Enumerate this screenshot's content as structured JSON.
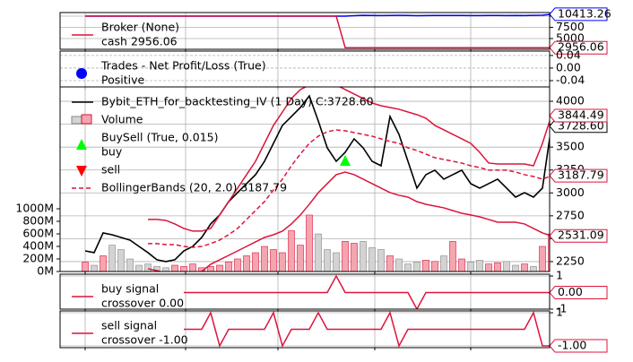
{
  "chart_data": [
    {
      "type": "line",
      "ylim": [
        2600,
        10800
      ],
      "yticks": [
        10000,
        7500,
        5000
      ],
      "grid": true,
      "legend": [
        {
          "lines": [
            "Broker (None)",
            "cash 2956.06"
          ],
          "marker": "line",
          "color": "#dc143c"
        }
      ],
      "series": [
        {
          "color": "#0000ff",
          "last_label": "10413.26",
          "values": [
            10000,
            10000,
            10000,
            10000,
            10000,
            10000,
            10000,
            10000,
            10000,
            10000,
            10000,
            10000,
            10000,
            10000,
            10000,
            10000,
            10000,
            10000,
            10000,
            10000,
            10000,
            10000,
            10000,
            10000,
            10000,
            10000,
            10000,
            10000,
            10000,
            9990,
            10100,
            10180,
            10150,
            10120,
            10160,
            10170,
            10140,
            10100,
            10130,
            10150,
            10160,
            10150,
            10140,
            10120,
            10130,
            10150,
            10140,
            10120,
            10160,
            10130,
            10180,
            10200,
            10413.26
          ]
        },
        {
          "color": "#dc143c",
          "last_label": "2956.06",
          "values": [
            10000,
            10000,
            10000,
            10000,
            10000,
            10000,
            10000,
            10000,
            10000,
            10000,
            10000,
            10000,
            10000,
            10000,
            10000,
            10000,
            10000,
            10000,
            10000,
            10000,
            10000,
            10000,
            10000,
            10000,
            10000,
            10000,
            10000,
            10000,
            10000,
            2956.06,
            2956.06,
            2956.06,
            2956.06,
            2956.06,
            2956.06,
            2956.06,
            2956.06,
            2956.06,
            2956.06,
            2956.06,
            2956.06,
            2956.06,
            2956.06,
            2956.06,
            2956.06,
            2956.06,
            2956.06,
            2956.06,
            2956.06,
            2956.06,
            2956.06,
            2956.06,
            2956.06
          ]
        }
      ]
    },
    {
      "type": "line",
      "ylim": [
        -0.06,
        0.054
      ],
      "yticks": [
        0.04,
        {
          "value": 0,
          "label": "0.00"
        },
        -0.04
      ],
      "grid": true,
      "legend": [
        {
          "lines": [
            "Trades - Net Profit/Loss (True)",
            "Positive"
          ],
          "marker": "dot",
          "color": "#0000ff"
        }
      ],
      "series": []
    },
    {
      "type": "line",
      "ylim": [
        2142,
        4157
      ],
      "yticks": [
        4000,
        3750,
        3500,
        3250,
        3000,
        2750,
        2500,
        2250
      ],
      "grid": true,
      "y2lim": [
        0,
        2943
      ],
      "y2ticks": [
        {
          "value": 0,
          "label": "0M"
        },
        {
          "value": 200,
          "label": "200M"
        },
        {
          "value": 400,
          "label": "400M"
        },
        {
          "value": 600,
          "label": "600M"
        },
        {
          "value": 800,
          "label": "800M"
        },
        {
          "value": 1000,
          "label": "1000M"
        }
      ],
      "legend": [
        {
          "lines": [
            "Bybit_ETH_for_backtesting_IV (1 Day) C:3728.60"
          ],
          "marker": "line",
          "color": "#000000"
        },
        {
          "lines": [
            "Volume"
          ],
          "marker": "bar",
          "color": "#f4a6b0"
        },
        {
          "lines": [
            "BuySell (True, 0.015)",
            "buy"
          ],
          "marker": "triangle-up",
          "color": "#00ff00"
        },
        {
          "lines": [
            "sell"
          ],
          "marker": "triangle-down",
          "color": "#ff0000"
        },
        {
          "lines": [
            "BollingerBands (20, 2.0) 3187.79"
          ],
          "marker": "dashed",
          "color": "#dc143c"
        }
      ],
      "series": [
        {
          "kind": "bar",
          "axis": "y2",
          "color": "#f4a6b0",
          "down_color": "#d3d3d3",
          "values": [
            150,
            100,
            250,
            420,
            350,
            200,
            100,
            120,
            80,
            60,
            100,
            80,
            120,
            60,
            80,
            100,
            150,
            200,
            250,
            300,
            400,
            350,
            300,
            650,
            420,
            900,
            600,
            350,
            300,
            480,
            450,
            480,
            380,
            350,
            250,
            200,
            120,
            150,
            180,
            160,
            250,
            480,
            200,
            150,
            180,
            120,
            140,
            160,
            100,
            120,
            80,
            400,
            600
          ]
        },
        {
          "kind": "line",
          "color": "#000000",
          "last_label": "3728.60",
          "values": [
            2367,
            2348,
            2563,
            2543,
            2514,
            2485,
            2416,
            2348,
            2270,
            2250,
            2270,
            2367,
            2416,
            2514,
            2661,
            2759,
            2905,
            3003,
            3101,
            3199,
            3345,
            3541,
            3737,
            3834,
            3932,
            4059,
            3785,
            3492,
            3345,
            3443,
            3590,
            3492,
            3345,
            3296,
            3834,
            3639,
            3345,
            3052,
            3199,
            3248,
            3150,
            3199,
            3248,
            3101,
            3052,
            3101,
            3150,
            3052,
            2954,
            3003,
            2954,
            3052,
            3728.6
          ]
        },
        {
          "kind": "line",
          "color": "#dc143c",
          "last_label": "3844.49",
          "values": [
            null,
            null,
            null,
            null,
            null,
            null,
            null,
            2710,
            2710,
            2700,
            2661,
            2612,
            2583,
            2583,
            2612,
            2759,
            2905,
            3052,
            3199,
            3345,
            3541,
            3737,
            3883,
            4030,
            4128,
            4177,
            4226,
            4206,
            4177,
            4128,
            4079,
            4030,
            3981,
            3952,
            3932,
            3913,
            3883,
            3854,
            3815,
            3737,
            3688,
            3639,
            3590,
            3541,
            3443,
            3326,
            3316,
            3316,
            3316,
            3316,
            3296,
            3541,
            3844.49
          ]
        },
        {
          "kind": "line",
          "style": "dashed",
          "color": "#dc143c",
          "last_label": "3187.79",
          "values": [
            null,
            null,
            null,
            null,
            null,
            null,
            null,
            2446,
            2446,
            2436,
            2436,
            2416,
            2406,
            2416,
            2446,
            2485,
            2544,
            2612,
            2710,
            2808,
            2905,
            3032,
            3150,
            3296,
            3424,
            3541,
            3619,
            3668,
            3688,
            3678,
            3658,
            3639,
            3619,
            3590,
            3561,
            3541,
            3492,
            3463,
            3424,
            3384,
            3365,
            3345,
            3326,
            3296,
            3277,
            3248,
            3248,
            3248,
            3228,
            3199,
            3179,
            3150,
            3187.79
          ]
        },
        {
          "kind": "line",
          "color": "#dc143c",
          "last_label": "2531.09",
          "values": [
            null,
            null,
            null,
            null,
            null,
            null,
            null,
            2172,
            2152,
            2123,
            2094,
            2074,
            2094,
            2142,
            2221,
            2270,
            2318,
            2367,
            2416,
            2465,
            2514,
            2543,
            2583,
            2661,
            2759,
            2876,
            3003,
            3101,
            3199,
            3228,
            3199,
            3150,
            3101,
            3052,
            3003,
            2974,
            2954,
            2905,
            2876,
            2856,
            2837,
            2807,
            2778,
            2759,
            2739,
            2710,
            2680,
            2680,
            2680,
            2661,
            2612,
            2563,
            2531.09
          ]
        },
        {
          "kind": "marker",
          "shape": "triangle-up",
          "color": "#00ff00",
          "x": [
            29
          ],
          "values": [
            3345
          ]
        }
      ]
    },
    {
      "type": "line",
      "ylim": [
        -1,
        1.11
      ],
      "yticks": [
        1,
        -1
      ],
      "grid": true,
      "legend": [
        {
          "lines": [
            "buy signal",
            "crossover 0.00"
          ],
          "marker": "line",
          "color": "#dc143c"
        }
      ],
      "series": [
        {
          "kind": "line",
          "color": "#dc143c",
          "last_label": "0.00",
          "values": [
            null,
            null,
            null,
            null,
            null,
            null,
            null,
            null,
            null,
            null,
            null,
            0,
            0,
            0,
            0,
            0,
            0,
            0,
            0,
            0,
            0,
            0,
            0,
            0,
            0,
            0,
            0,
            0,
            1,
            0,
            0,
            0,
            0,
            0,
            0,
            0,
            0,
            -1,
            0,
            0,
            0,
            0,
            0,
            0,
            0,
            0,
            0,
            0,
            0,
            0,
            0,
            0,
            0
          ]
        }
      ]
    },
    {
      "type": "line",
      "ylim": [
        -1.11,
        1.11
      ],
      "yticks": [
        1,
        -1
      ],
      "grid": true,
      "legend": [
        {
          "lines": [
            "sell signal",
            "crossover -1.00"
          ],
          "marker": "line",
          "color": "#dc143c"
        }
      ],
      "series": [
        {
          "kind": "line",
          "color": "#dc143c",
          "last_label": "-1.00",
          "values": [
            null,
            null,
            null,
            null,
            null,
            null,
            null,
            null,
            null,
            null,
            null,
            0,
            0,
            0,
            1,
            -1,
            0,
            0,
            0,
            0,
            0,
            1,
            -1,
            0,
            0,
            0,
            1,
            0,
            0,
            0,
            0,
            0,
            0,
            0,
            1,
            -1,
            0,
            0,
            0,
            0,
            0,
            0,
            0,
            0,
            0,
            0,
            0,
            0,
            0,
            0,
            1,
            -1,
            -1
          ]
        }
      ]
    }
  ]
}
